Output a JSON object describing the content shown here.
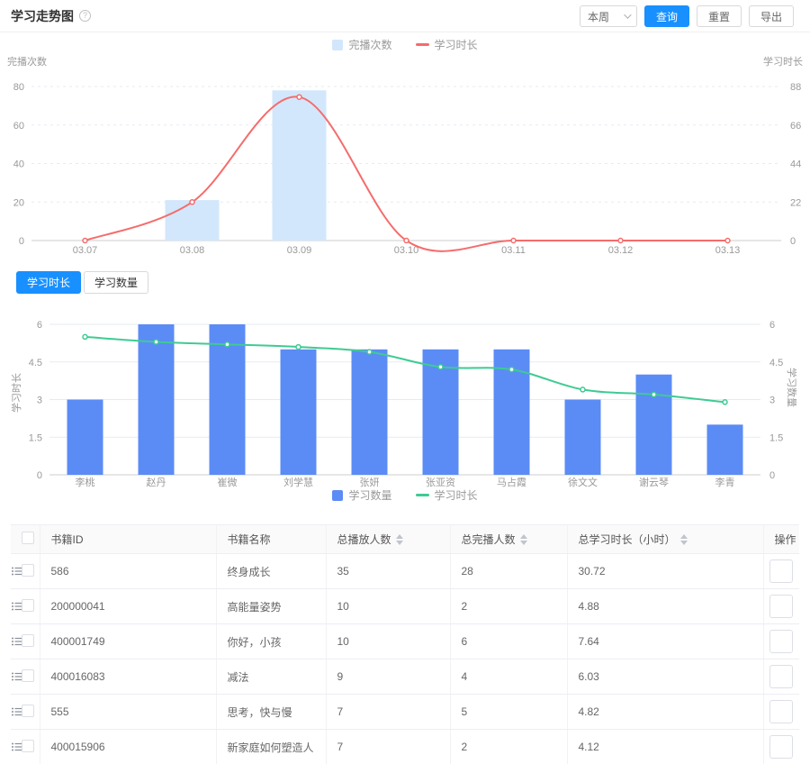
{
  "header": {
    "title": "学习走势图",
    "period_select": {
      "value": "本周"
    },
    "buttons": {
      "query": "查询",
      "reset": "重置",
      "export": "导出"
    }
  },
  "view_toggle": {
    "options": [
      "学习时长",
      "学习数量"
    ],
    "active_index": 0
  },
  "chart_data": [
    {
      "type": "bar+line",
      "categories": [
        "03.07",
        "03.08",
        "03.09",
        "03.10",
        "03.11",
        "03.12",
        "03.13"
      ],
      "series": [
        {
          "name": "完播次数",
          "type": "bar",
          "axis": "left",
          "color": "#d2e7fb",
          "values": [
            0,
            21,
            78,
            0,
            0,
            0,
            0
          ]
        },
        {
          "name": "学习时长",
          "type": "line",
          "axis": "right",
          "color": "#f56c6c",
          "values": [
            0,
            22,
            82,
            0,
            0,
            0,
            0
          ]
        }
      ],
      "left_axis": {
        "label": "完播次数",
        "max": 80,
        "ticks": [
          0,
          20,
          40,
          60,
          80
        ]
      },
      "right_axis": {
        "label": "学习时长",
        "max": 88,
        "ticks": [
          0,
          22,
          44,
          66,
          88
        ]
      },
      "legend": [
        "完播次数",
        "学习时长"
      ],
      "legend_position": "top",
      "grid": "dashed"
    },
    {
      "type": "bar+line",
      "categories": [
        "李桃",
        "赵丹",
        "崔微",
        "刘学慧",
        "张妍",
        "张亚资",
        "马占霞",
        "徐文文",
        "谢云琴",
        "李青"
      ],
      "series": [
        {
          "name": "学习数量",
          "type": "bar",
          "axis": "right",
          "color": "#5b8cf5",
          "values": [
            3,
            6,
            6,
            5,
            5,
            5,
            5,
            3,
            4,
            2
          ]
        },
        {
          "name": "学习时长",
          "type": "line",
          "axis": "left",
          "color": "#3ecb93",
          "values": [
            5.5,
            5.3,
            5.2,
            5.1,
            4.9,
            4.3,
            4.2,
            3.4,
            3.2,
            2.9
          ]
        }
      ],
      "left_axis": {
        "label": "学习时长",
        "max": 6,
        "ticks": [
          0,
          1.5,
          3,
          4.5,
          6
        ]
      },
      "right_axis": {
        "label": "学习数量",
        "max": 6,
        "ticks": [
          0,
          1.5,
          3,
          4.5,
          6
        ]
      },
      "legend": [
        "学习数量",
        "学习时长"
      ],
      "legend_position": "bottom",
      "grid": "solid"
    }
  ],
  "table": {
    "columns": [
      {
        "label": "书籍ID",
        "sortable": false
      },
      {
        "label": "书籍名称",
        "sortable": false
      },
      {
        "label": "总播放人数",
        "sortable": true
      },
      {
        "label": "总完播人数",
        "sortable": true
      },
      {
        "label": "总学习时长（小时）",
        "sortable": true
      },
      {
        "label": "操作",
        "sortable": false
      }
    ],
    "rows": [
      [
        "586",
        "终身成长",
        "35",
        "28",
        "30.72"
      ],
      [
        "200000041",
        "高能量姿势",
        "10",
        "2",
        "4.88"
      ],
      [
        "400001749",
        "你好，小孩",
        "10",
        "6",
        "7.64"
      ],
      [
        "400016083",
        "减法",
        "9",
        "4",
        "6.03"
      ],
      [
        "555",
        "思考，快与慢",
        "7",
        "5",
        "4.82"
      ],
      [
        "400015906",
        "新家庭如何塑造人",
        "7",
        "2",
        "4.12"
      ]
    ]
  }
}
